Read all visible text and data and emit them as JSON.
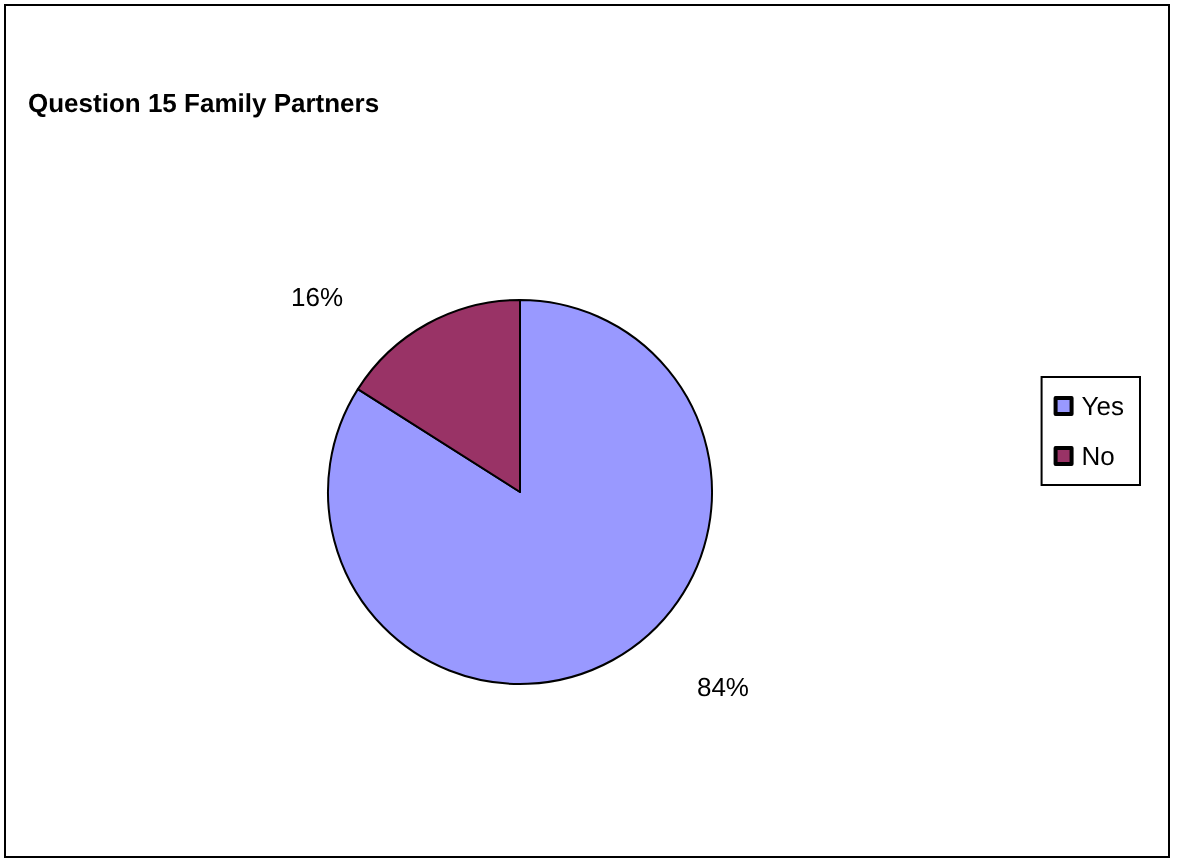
{
  "chart_data": {
    "type": "pie",
    "title": "Question 15 Family Partners",
    "categories": [
      "Yes",
      "No"
    ],
    "values": [
      84,
      16
    ],
    "value_labels": [
      "84%",
      "16%"
    ],
    "colors": [
      "#9999ff",
      "#993366"
    ],
    "legend": "right"
  }
}
